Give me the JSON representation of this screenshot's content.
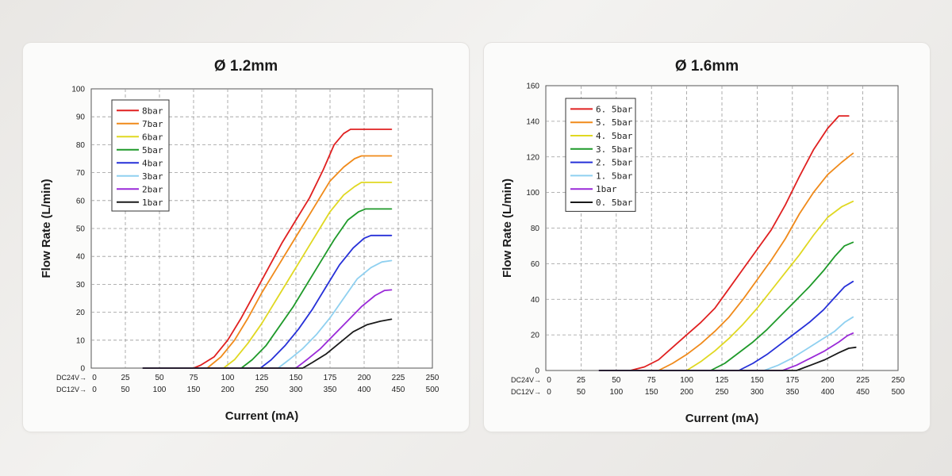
{
  "chart_data": [
    {
      "type": "line",
      "title": "Ø 1.2mm",
      "xlabel": "Current (mA)",
      "ylabel": "Flow Rate (L/min)",
      "xlim": [
        0,
        250
      ],
      "ylim": [
        0,
        100
      ],
      "x_ticks": [
        0,
        25,
        50,
        75,
        100,
        125,
        150,
        175,
        200,
        225,
        250
      ],
      "y_ticks": [
        0,
        10,
        20,
        30,
        40,
        50,
        60,
        70,
        80,
        90,
        100
      ],
      "x_axis_rows": [
        {
          "label": "DC24V→",
          "ticks": [
            "0",
            "25",
            "50",
            "75",
            "100",
            "125",
            "150",
            "175",
            "200",
            "225",
            "250"
          ]
        },
        {
          "label": "DC12V→",
          "ticks": [
            "0",
            "50",
            "100",
            "150",
            "200",
            "250",
            "300",
            "350",
            "400",
            "450",
            "500"
          ]
        }
      ],
      "grid": true,
      "legend_position": "top-left",
      "series": [
        {
          "name": "8bar",
          "color": "#e02020",
          "points": [
            [
              38,
              0
            ],
            [
              75,
              0
            ],
            [
              80,
              1
            ],
            [
              90,
              4
            ],
            [
              100,
              10
            ],
            [
              110,
              18
            ],
            [
              120,
              27
            ],
            [
              130,
              36
            ],
            [
              140,
              45
            ],
            [
              150,
              53
            ],
            [
              160,
              61
            ],
            [
              170,
              71
            ],
            [
              178,
              80
            ],
            [
              185,
              84
            ],
            [
              190,
              85.5
            ],
            [
              220,
              85.5
            ]
          ]
        },
        {
          "name": "7bar",
          "color": "#f08a1a",
          "points": [
            [
              38,
              0
            ],
            [
              85,
              0
            ],
            [
              95,
              4
            ],
            [
              105,
              10
            ],
            [
              115,
              18
            ],
            [
              125,
              27
            ],
            [
              135,
              35
            ],
            [
              145,
              43
            ],
            [
              155,
              51
            ],
            [
              165,
              59
            ],
            [
              175,
              67
            ],
            [
              185,
              72
            ],
            [
              193,
              75
            ],
            [
              198,
              76
            ],
            [
              220,
              76
            ]
          ]
        },
        {
          "name": "6bar",
          "color": "#e0d822",
          "points": [
            [
              38,
              0
            ],
            [
              97,
              0
            ],
            [
              105,
              3
            ],
            [
              115,
              9
            ],
            [
              125,
              16
            ],
            [
              135,
              24
            ],
            [
              145,
              32
            ],
            [
              155,
              40
            ],
            [
              165,
              48
            ],
            [
              175,
              56
            ],
            [
              185,
              62
            ],
            [
              193,
              65
            ],
            [
              198,
              66.5
            ],
            [
              220,
              66.5
            ]
          ]
        },
        {
          "name": "5bar",
          "color": "#1f9a2a",
          "points": [
            [
              38,
              0
            ],
            [
              110,
              0
            ],
            [
              118,
              3
            ],
            [
              128,
              8
            ],
            [
              138,
              15
            ],
            [
              148,
              22
            ],
            [
              158,
              30
            ],
            [
              168,
              38
            ],
            [
              178,
              46
            ],
            [
              188,
              53
            ],
            [
              196,
              56
            ],
            [
              201,
              57
            ],
            [
              220,
              57
            ]
          ]
        },
        {
          "name": "4bar",
          "color": "#2630d8",
          "points": [
            [
              38,
              0
            ],
            [
              124,
              0
            ],
            [
              132,
              3
            ],
            [
              142,
              8
            ],
            [
              152,
              14
            ],
            [
              162,
              21
            ],
            [
              172,
              29
            ],
            [
              182,
              37
            ],
            [
              192,
              43
            ],
            [
              200,
              46.5
            ],
            [
              205,
              47.5
            ],
            [
              220,
              47.5
            ]
          ]
        },
        {
          "name": "3bar",
          "color": "#8fd0f0",
          "points": [
            [
              38,
              0
            ],
            [
              137,
              0
            ],
            [
              145,
              3
            ],
            [
              155,
              7
            ],
            [
              165,
              12
            ],
            [
              175,
              18
            ],
            [
              185,
              25
            ],
            [
              195,
              32
            ],
            [
              205,
              36
            ],
            [
              213,
              38
            ],
            [
              220,
              38.5
            ]
          ]
        },
        {
          "name": "2bar",
          "color": "#9a2ad8",
          "points": [
            [
              38,
              0
            ],
            [
              150,
              0
            ],
            [
              158,
              3
            ],
            [
              168,
              7
            ],
            [
              178,
              12
            ],
            [
              188,
              17
            ],
            [
              198,
              22
            ],
            [
              208,
              26
            ],
            [
              215,
              27.8
            ],
            [
              220,
              28
            ]
          ]
        },
        {
          "name": "1bar",
          "color": "#1a1a1a",
          "points": [
            [
              38,
              0
            ],
            [
              155,
              0
            ],
            [
              162,
              2
            ],
            [
              172,
              5
            ],
            [
              182,
              9
            ],
            [
              192,
              13
            ],
            [
              202,
              15.5
            ],
            [
              212,
              16.8
            ],
            [
              220,
              17.5
            ]
          ]
        }
      ]
    },
    {
      "type": "line",
      "title": "Ø 1.6mm",
      "xlabel": "Current (mA)",
      "ylabel": "Flow Rate (L/min)",
      "xlim": [
        0,
        250
      ],
      "ylim": [
        0,
        160
      ],
      "x_ticks": [
        0,
        25,
        50,
        75,
        100,
        125,
        150,
        175,
        200,
        225,
        250
      ],
      "y_ticks": [
        0,
        20,
        40,
        60,
        80,
        100,
        120,
        140,
        160
      ],
      "x_axis_rows": [
        {
          "label": "DC24V→",
          "ticks": [
            "0",
            "25",
            "50",
            "75",
            "100",
            "125",
            "150",
            "175",
            "200",
            "225",
            "250"
          ]
        },
        {
          "label": "DC12V→",
          "ticks": [
            "0",
            "50",
            "100",
            "150",
            "200",
            "250",
            "300",
            "350",
            "400",
            "450",
            "500"
          ]
        }
      ],
      "grid": true,
      "legend_position": "top-left",
      "series": [
        {
          "name": "6. 5bar",
          "color": "#e02020",
          "points": [
            [
              38,
              0
            ],
            [
              60,
              0
            ],
            [
              70,
              2
            ],
            [
              80,
              6
            ],
            [
              90,
              13
            ],
            [
              100,
              20
            ],
            [
              110,
              27
            ],
            [
              120,
              35
            ],
            [
              130,
              46
            ],
            [
              140,
              57
            ],
            [
              150,
              68
            ],
            [
              160,
              79
            ],
            [
              170,
              93
            ],
            [
              180,
              109
            ],
            [
              190,
              124
            ],
            [
              200,
              136
            ],
            [
              208,
              143
            ],
            [
              215,
              143
            ]
          ]
        },
        {
          "name": "5. 5bar",
          "color": "#f08a1a",
          "points": [
            [
              38,
              0
            ],
            [
              80,
              0
            ],
            [
              90,
              4
            ],
            [
              100,
              9
            ],
            [
              110,
              15
            ],
            [
              120,
              22
            ],
            [
              130,
              30
            ],
            [
              140,
              40
            ],
            [
              150,
              51
            ],
            [
              160,
              62
            ],
            [
              170,
              74
            ],
            [
              180,
              88
            ],
            [
              190,
              100
            ],
            [
              200,
              110
            ],
            [
              210,
              117
            ],
            [
              218,
              122
            ]
          ]
        },
        {
          "name": "4. 5bar",
          "color": "#e0d822",
          "points": [
            [
              38,
              0
            ],
            [
              100,
              0
            ],
            [
              110,
              5
            ],
            [
              120,
              11
            ],
            [
              130,
              18
            ],
            [
              140,
              26
            ],
            [
              150,
              35
            ],
            [
              160,
              45
            ],
            [
              170,
              55
            ],
            [
              180,
              65
            ],
            [
              190,
              76
            ],
            [
              200,
              86
            ],
            [
              210,
              92
            ],
            [
              218,
              95
            ]
          ]
        },
        {
          "name": "3. 5bar",
          "color": "#1f9a2a",
          "points": [
            [
              38,
              0
            ],
            [
              117,
              0
            ],
            [
              127,
              4
            ],
            [
              137,
              10
            ],
            [
              147,
              16
            ],
            [
              157,
              23
            ],
            [
              167,
              31
            ],
            [
              177,
              39
            ],
            [
              187,
              47
            ],
            [
              197,
              56
            ],
            [
              205,
              64
            ],
            [
              212,
              70
            ],
            [
              218,
              72
            ]
          ]
        },
        {
          "name": "2. 5bar",
          "color": "#2630d8",
          "points": [
            [
              38,
              0
            ],
            [
              137,
              0
            ],
            [
              147,
              4
            ],
            [
              157,
              9
            ],
            [
              167,
              15
            ],
            [
              177,
              21
            ],
            [
              187,
              27
            ],
            [
              197,
              34
            ],
            [
              205,
              41
            ],
            [
              212,
              47
            ],
            [
              218,
              50
            ]
          ]
        },
        {
          "name": "1. 5bar",
          "color": "#8fd0f0",
          "points": [
            [
              38,
              0
            ],
            [
              155,
              0
            ],
            [
              165,
              3
            ],
            [
              175,
              7
            ],
            [
              185,
              12
            ],
            [
              195,
              17
            ],
            [
              205,
              22
            ],
            [
              212,
              27
            ],
            [
              218,
              30
            ]
          ]
        },
        {
          "name": "1bar",
          "color": "#9a2ad8",
          "points": [
            [
              38,
              0
            ],
            [
              168,
              0
            ],
            [
              178,
              3
            ],
            [
              188,
              7
            ],
            [
              198,
              11
            ],
            [
              208,
              16
            ],
            [
              214,
              19.5
            ],
            [
              218,
              21
            ]
          ]
        },
        {
          "name": "0. 5bar",
          "color": "#1a1a1a",
          "points": [
            [
              38,
              0
            ],
            [
              178,
              0
            ],
            [
              188,
              3
            ],
            [
              198,
              6
            ],
            [
              208,
              10
            ],
            [
              215,
              12.5
            ],
            [
              220,
              13
            ]
          ]
        }
      ]
    }
  ]
}
